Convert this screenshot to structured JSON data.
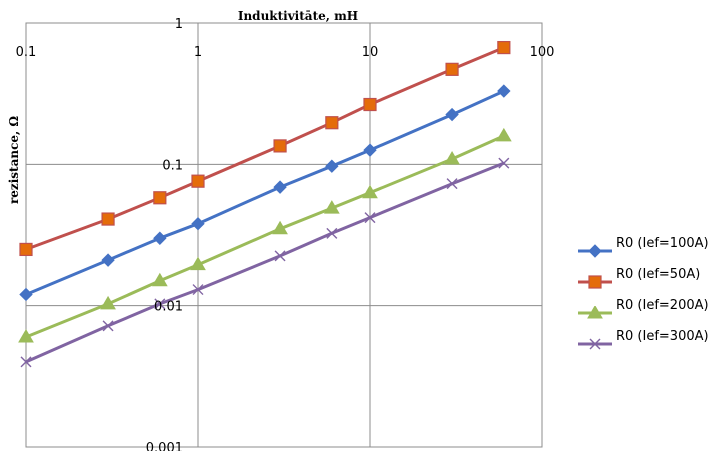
{
  "chart_data": {
    "type": "line",
    "title": "",
    "xlabel": "Induktivitāte, mH",
    "ylabel": "rezistance, Ω",
    "xscale": "log",
    "yscale": "log",
    "xlim": [
      0.1,
      100
    ],
    "ylim": [
      0.001,
      1
    ],
    "x_ticks": [
      "0.1",
      "1",
      "10",
      "100"
    ],
    "y_ticks": [
      "0.001",
      "0.01",
      "0.1",
      "1"
    ],
    "x_axis_position": "top",
    "grid": true,
    "legend_position": "right",
    "x": [
      0.1,
      0.3,
      0.6,
      1,
      3,
      6,
      10,
      30,
      60
    ],
    "series": [
      {
        "name": "R0 (Ief=100A)",
        "color": "#4472C4",
        "marker": "diamond",
        "values": [
          0.012,
          0.021,
          0.03,
          0.038,
          0.069,
          0.097,
          0.126,
          0.225,
          0.33
        ]
      },
      {
        "name": "R0 (Ief=50A)",
        "color": "#C0504D",
        "marker": "square",
        "values": [
          0.025,
          0.041,
          0.058,
          0.076,
          0.135,
          0.197,
          0.265,
          0.47,
          0.67
        ]
      },
      {
        "name": "R0 (Ief=200A)",
        "color": "#9BBB59",
        "marker": "triangle",
        "values": [
          0.006,
          0.0103,
          0.015,
          0.0195,
          0.035,
          0.049,
          0.063,
          0.109,
          0.159
        ]
      },
      {
        "name": "R0 (Ief=300A)",
        "color": "#8064A2",
        "marker": "x",
        "values": [
          0.004,
          0.0072,
          0.0103,
          0.013,
          0.0225,
          0.0325,
          0.042,
          0.073,
          0.102
        ]
      }
    ]
  }
}
